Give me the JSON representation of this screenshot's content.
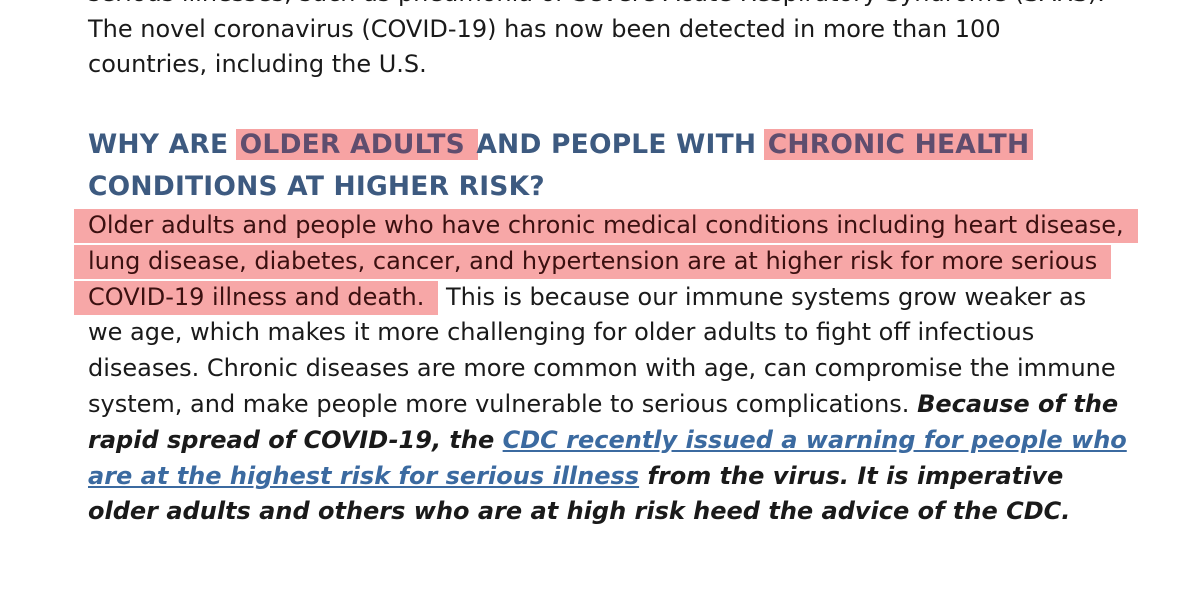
{
  "intro": {
    "line0": "serious illnesses, such as pneumonia or Severe Acute Respiratory Syndrome (SARS).",
    "line1": "The novel coronavirus (COVID-19) has now been detected in more than 100",
    "line2": "countries, including the U.S."
  },
  "heading": {
    "part1": "WHY ARE ",
    "hl1": "OLDER ADULTS ",
    "part2": "AND PEOPLE WITH ",
    "hl2": "CHRONIC HEALTH",
    "part3": "CONDITIONS AT HIGHER RISK?"
  },
  "body": {
    "highlighted": "Older adults and people who have chronic medical conditions including heart disease, lung disease, diabetes, cancer, and hypertension are at higher risk for more serious COVID-19 illness and death.",
    "plain": " This is because our immune systems grow weaker as we age, which makes it more challenging for older adults to fight off infectious diseases. Chronic diseases are more common with age, can compromise the immune system, and make people more vulnerable to serious complications. ",
    "emphasis_before_link": "Because of the rapid spread of COVID-19, the ",
    "link_text": "CDC recently issued a warning for people who are at the highest risk for serious illness",
    "emphasis_after_link": " from the virus. It is imperative older adults and others who are at high risk heed the advice of the CDC."
  },
  "colors": {
    "heading": "#3d5a80",
    "highlight": "#f7a3a3",
    "link": "#3b6aa0"
  }
}
